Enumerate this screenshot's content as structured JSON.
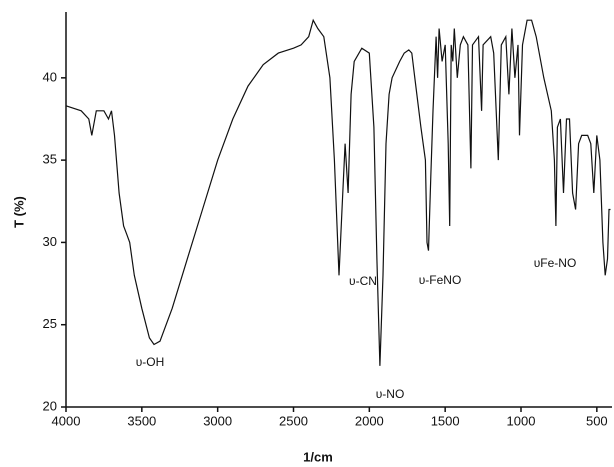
{
  "chart_data": {
    "type": "line",
    "x_label": "1/cm",
    "y_label": "T (%)",
    "annotations": [
      "υ-OH",
      "υ-CN",
      "υ-NO",
      "υ-FeNO",
      "υFe-NO"
    ],
    "xlim": [
      4000,
      400
    ],
    "ylim": [
      20,
      44
    ],
    "xticks": [
      4000,
      3500,
      3000,
      2500,
      2000,
      1500,
      1000,
      500
    ],
    "yticks": [
      20,
      25,
      30,
      35,
      40
    ],
    "series": [
      {
        "color": "#111111",
        "x": [
          4000,
          3900,
          3850,
          3830,
          3800,
          3750,
          3720,
          3700,
          3680,
          3650,
          3620,
          3600,
          3580,
          3550,
          3500,
          3450,
          3420,
          3380,
          3300,
          3200,
          3100,
          3000,
          2900,
          2800,
          2700,
          2600,
          2500,
          2450,
          2400,
          2370,
          2340,
          2300,
          2260,
          2230,
          2200,
          2180,
          2160,
          2140,
          2120,
          2100,
          2050,
          2000,
          1970,
          1950,
          1930,
          1910,
          1890,
          1870,
          1850,
          1800,
          1770,
          1740,
          1720,
          1700,
          1660,
          1630,
          1620,
          1610,
          1595,
          1580,
          1560,
          1550,
          1540,
          1520,
          1500,
          1480,
          1470,
          1460,
          1450,
          1440,
          1420,
          1400,
          1380,
          1350,
          1330,
          1320,
          1280,
          1260,
          1250,
          1200,
          1180,
          1150,
          1130,
          1100,
          1080,
          1060,
          1040,
          1020,
          1010,
          990,
          960,
          930,
          900,
          850,
          800,
          780,
          770,
          760,
          740,
          720,
          700,
          680,
          660,
          640,
          620,
          600,
          560,
          540,
          520,
          500,
          480,
          460,
          445,
          430,
          420,
          410
        ],
        "values": [
          38.3,
          38.0,
          37.5,
          36.5,
          38.0,
          38.0,
          37.5,
          38.0,
          36.5,
          33,
          31,
          30.5,
          30,
          28,
          26,
          24.2,
          23.8,
          24,
          26,
          29,
          32,
          35,
          37.5,
          39.5,
          40.8,
          41.5,
          41.8,
          42,
          42.5,
          43.5,
          43,
          42.5,
          40,
          35,
          28,
          32,
          36,
          33,
          39,
          41,
          41.8,
          41.5,
          37,
          29,
          22.5,
          28,
          36,
          39,
          40,
          41,
          41.5,
          41.7,
          41.5,
          40,
          37,
          35,
          30,
          29.5,
          34,
          38,
          42.5,
          40,
          43,
          41,
          42,
          36,
          31,
          42,
          41,
          43,
          40,
          42,
          42.5,
          42,
          34.5,
          42,
          42.5,
          38,
          42,
          42.5,
          41.5,
          35,
          42,
          42.5,
          39,
          43,
          40,
          42,
          36.5,
          42,
          43.5,
          43.5,
          42.5,
          40,
          38,
          35,
          31,
          37,
          37.5,
          33,
          37.5,
          37.5,
          33,
          32,
          36,
          36.5,
          36.5,
          36,
          33,
          36.5,
          35,
          30,
          28,
          29,
          32,
          32
        ]
      }
    ]
  }
}
